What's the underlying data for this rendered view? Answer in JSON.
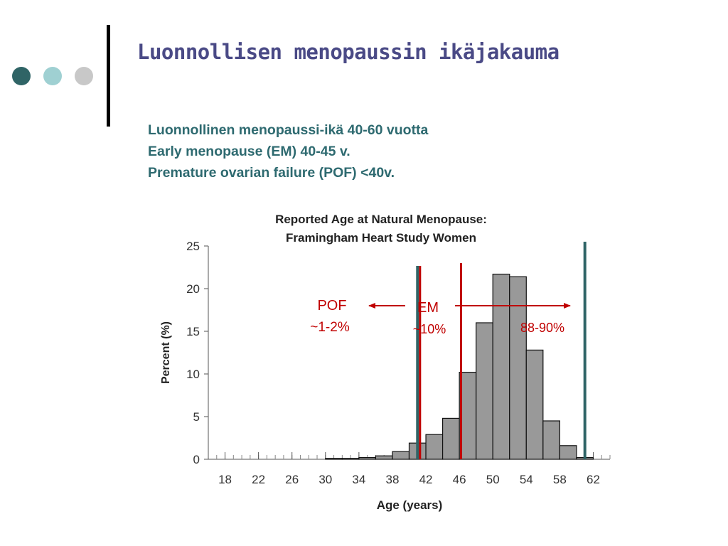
{
  "slide": {
    "title": "Luonnollisen menopaussin ikäjakauma",
    "lines": [
      "Luonnollinen menopaussi-ikä 40-60 vuotta",
      "Early menopause (EM) 40-45 v.",
      "Premature ovarian failure (POF) <40v."
    ],
    "decor_dot_colors": [
      "#2f6466",
      "#9fd0d2",
      "#c8c8c8"
    ]
  },
  "chart_data": {
    "type": "bar",
    "title": "Reported Age at Natural Menopause:",
    "subtitle": "Framingham Heart Study Women",
    "xlabel": "Age (years)",
    "ylabel": "Percent (%)",
    "ylim": [
      0,
      25
    ],
    "yticks": [
      "25",
      "20",
      "15",
      "10",
      "5",
      "0"
    ],
    "xticks": [
      "18",
      "22",
      "26",
      "30",
      "34",
      "38",
      "42",
      "46",
      "50",
      "54",
      "58",
      "62"
    ],
    "bin_width": 2,
    "bins_start": [
      30,
      32,
      34,
      36,
      38,
      40,
      42,
      44,
      46,
      48,
      50,
      52,
      54,
      56,
      58,
      60
    ],
    "values": [
      0.1,
      0.1,
      0.2,
      0.4,
      0.9,
      1.9,
      2.9,
      4.8,
      10.2,
      16.0,
      21.7,
      21.4,
      12.8,
      4.5,
      1.6,
      0.2
    ],
    "bar_color": "#999999",
    "grid": false,
    "annotations": {
      "pof_label": "POF",
      "pof_pct": "~1-2%",
      "em_label": "EM",
      "em_pct": "~10%",
      "normal_pct": "88-90%",
      "teal_lines_at": [
        41,
        61
      ],
      "red_lines_at": [
        41.3,
        46.2
      ],
      "teal_color": "#2f6466",
      "red_color": "#c00000"
    }
  }
}
